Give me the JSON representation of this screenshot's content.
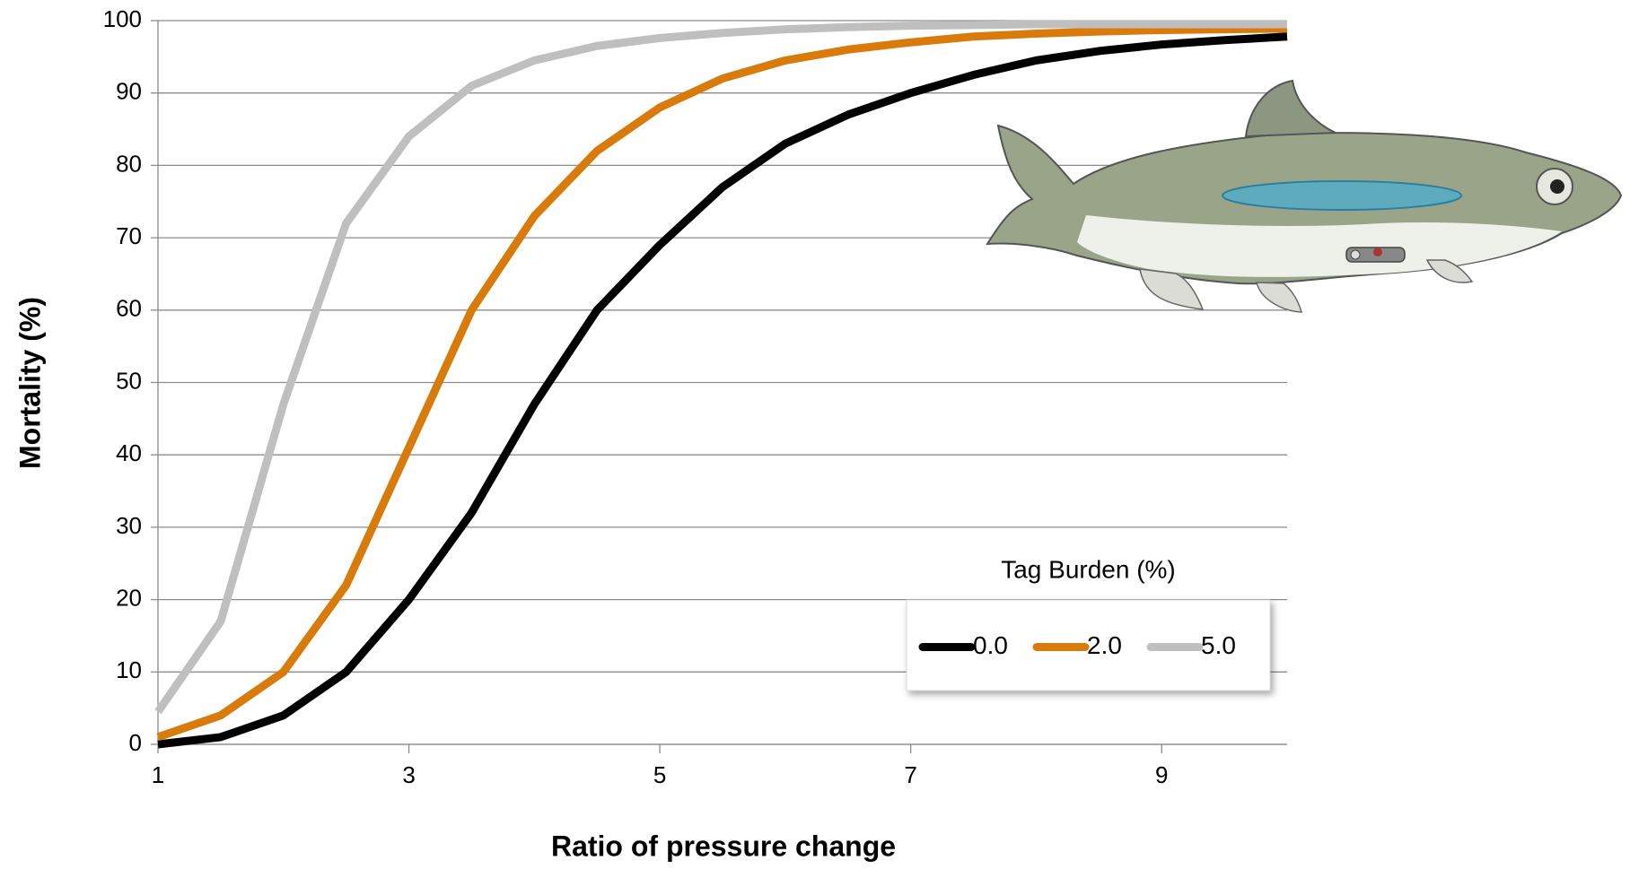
{
  "chart_data": {
    "type": "line",
    "x_label": "Ratio of pressure change",
    "y_label": "Mortality (%)",
    "legend_title": "Tag Burden (%)",
    "legend_position": "lower right",
    "x": [
      1,
      1.5,
      2,
      2.5,
      3,
      3.5,
      4,
      4.5,
      5,
      5.5,
      6,
      6.5,
      7,
      7.5,
      8,
      8.5,
      9,
      9.5,
      10
    ],
    "series": [
      {
        "name": "0.0",
        "color": "#000000",
        "values": [
          0,
          1,
          4,
          10,
          20,
          32,
          47,
          60,
          69,
          77,
          83,
          87,
          90,
          92.5,
          94.5,
          95.8,
          96.7,
          97.3,
          97.8
        ]
      },
      {
        "name": "2.0",
        "color": "#d97b0b",
        "values": [
          1,
          4,
          10,
          22,
          41,
          60,
          73,
          82,
          88,
          92,
          94.5,
          96,
          97,
          97.8,
          98.2,
          98.5,
          98.7,
          98.8,
          98.9
        ]
      },
      {
        "name": "5.0",
        "color": "#bfbfbf",
        "values": [
          4.5,
          17,
          47,
          72,
          84,
          91,
          94.5,
          96.5,
          97.6,
          98.3,
          98.8,
          99.1,
          99.3,
          99.4,
          99.5,
          99.5,
          99.5,
          99.5,
          99.5
        ]
      }
    ],
    "xlim": [
      1,
      10
    ],
    "xticks": [
      1,
      3,
      5,
      7,
      9
    ],
    "ylim": [
      0,
      100
    ],
    "yticks": [
      0,
      10,
      20,
      30,
      40,
      50,
      60,
      70,
      80,
      90,
      100
    ],
    "grid": true
  }
}
